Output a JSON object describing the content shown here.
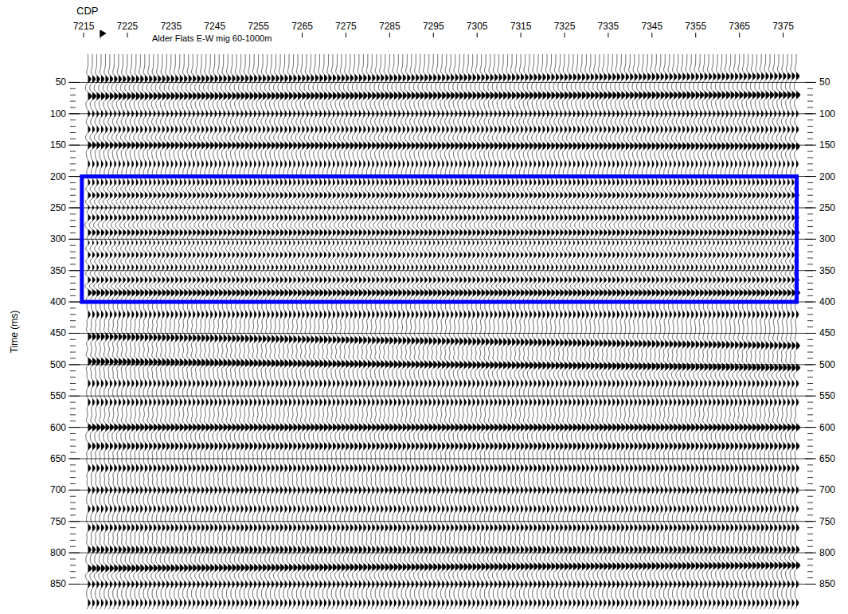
{
  "chart_data": {
    "type": "seismic",
    "title": "Alder Flats E-W mig 60-1000m",
    "x_label": "CDP",
    "y_label": "Time (ms)",
    "xlim": [
      7213,
      7380
    ],
    "xticks": [
      7215,
      7225,
      7235,
      7245,
      7255,
      7265,
      7275,
      7285,
      7295,
      7305,
      7315,
      7325,
      7335,
      7345,
      7355,
      7365,
      7375
    ],
    "ylim": [
      5,
      890
    ],
    "yticks": [
      50,
      100,
      150,
      200,
      250,
      300,
      350,
      400,
      450,
      500,
      550,
      600,
      650,
      700,
      750,
      800,
      850
    ],
    "grid": true,
    "trace_range": [
      7216,
      7378
    ],
    "trace_step": 1,
    "horizons": [
      {
        "t": [
          45,
          40
        ],
        "amplitude": 0.8
      },
      {
        "t": [
          72,
          70
        ],
        "amplitude": 1.0
      },
      {
        "t": [
          100,
          100
        ],
        "amplitude": 0.5
      },
      {
        "t": [
          125,
          125
        ],
        "amplitude": 0.6
      },
      {
        "t": [
          150,
          152
        ],
        "amplitude": 0.9
      },
      {
        "t": [
          180,
          180
        ],
        "amplitude": 0.5
      },
      {
        "t": [
          210,
          210
        ],
        "amplitude": 0.6
      },
      {
        "t": [
          230,
          230
        ],
        "amplitude": 0.8
      },
      {
        "t": [
          250,
          250
        ],
        "amplitude": 0.7
      },
      {
        "t": [
          265,
          265
        ],
        "amplitude": 0.9
      },
      {
        "t": [
          290,
          290
        ],
        "amplitude": 1.0
      },
      {
        "t": [
          305,
          305
        ],
        "amplitude": 0.7
      },
      {
        "t": [
          325,
          325
        ],
        "amplitude": 0.7
      },
      {
        "t": [
          345,
          345
        ],
        "amplitude": 0.6
      },
      {
        "t": [
          365,
          365
        ],
        "amplitude": 0.8
      },
      {
        "t": [
          385,
          385
        ],
        "amplitude": 1.0
      },
      {
        "t": [
          420,
          420
        ],
        "amplitude": 0.6
      },
      {
        "t": [
          455,
          470
        ],
        "amplitude": 0.9
      },
      {
        "t": [
          495,
          505
        ],
        "amplitude": 1.0
      },
      {
        "t": [
          530,
          530
        ],
        "amplitude": 0.6
      },
      {
        "t": [
          560,
          560
        ],
        "amplitude": 0.6
      },
      {
        "t": [
          600,
          600
        ],
        "amplitude": 1.0
      },
      {
        "t": [
          630,
          630
        ],
        "amplitude": 0.8
      },
      {
        "t": [
          665,
          665
        ],
        "amplitude": 0.7
      },
      {
        "t": [
          700,
          700
        ],
        "amplitude": 0.6
      },
      {
        "t": [
          730,
          730
        ],
        "amplitude": 0.6
      },
      {
        "t": [
          760,
          760
        ],
        "amplitude": 0.7
      },
      {
        "t": [
          795,
          795
        ],
        "amplitude": 0.8
      },
      {
        "t": [
          825,
          820
        ],
        "amplitude": 1.0
      },
      {
        "t": [
          850,
          850
        ],
        "amplitude": 0.6
      },
      {
        "t": [
          880,
          880
        ],
        "amplitude": 0.6
      }
    ],
    "highlight": {
      "x": [
        7214.6,
        7378.1
      ],
      "y": [
        200,
        400
      ],
      "color": "#0000ff"
    }
  }
}
